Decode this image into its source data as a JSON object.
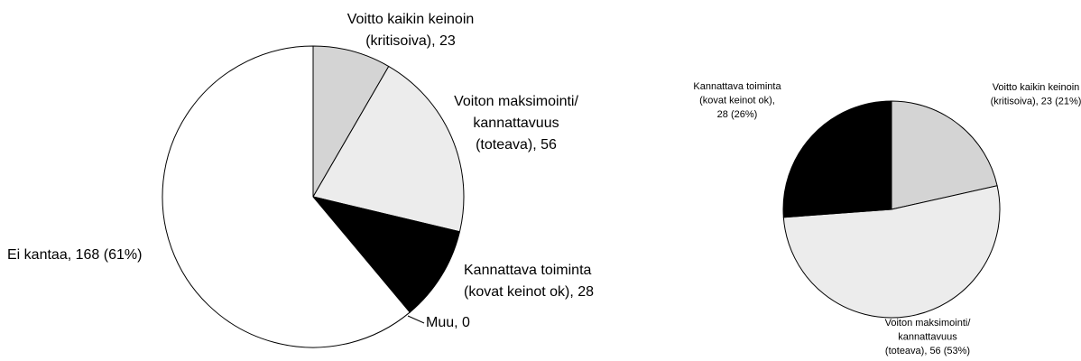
{
  "chart_data": [
    {
      "type": "pie",
      "categories": [
        "Voitto kaikin keinoin (kritisoiva)",
        "Voiton maksimointi/ kannattavuus (toteava)",
        "Kannattava toiminta (kovat keinot ok)",
        "Muu",
        "Ei kantaa"
      ],
      "values": [
        23,
        56,
        28,
        0,
        168
      ],
      "value_labels": [
        [
          "Voitto kaikin keinoin",
          "(kritisoiva), 23"
        ],
        [
          "Voiton maksimointi/",
          "kannattavuus",
          "(toteava), 56"
        ],
        [
          "Kannattava toiminta",
          "(kovat keinot ok), 28"
        ],
        [
          "Muu, 0"
        ],
        [
          "Ei kantaa, 168 (61%)"
        ]
      ],
      "colors": [
        "#d4d4d4",
        "#ececec",
        "#000000",
        "#ffffff",
        "#ffffff"
      ]
    },
    {
      "type": "pie",
      "categories": [
        "Voitto kaikin keinoin (kritisoiva)",
        "Voiton maksimointi/ kannattavuus (toteava)",
        "Kannattava toiminta (kovat keinot ok)"
      ],
      "values": [
        23,
        56,
        28
      ],
      "value_labels": [
        [
          "Voitto kaikin keinoin",
          "(kritisoiva), 23 (21%)"
        ],
        [
          "Voiton maksimointi/",
          "kannattavuus",
          "(toteava), 56 (53%)"
        ],
        [
          "Kannattava toiminta",
          "(kovat keinot ok),",
          "28 (26%)"
        ]
      ],
      "colors": [
        "#d4d4d4",
        "#ececec",
        "#000000"
      ]
    }
  ]
}
